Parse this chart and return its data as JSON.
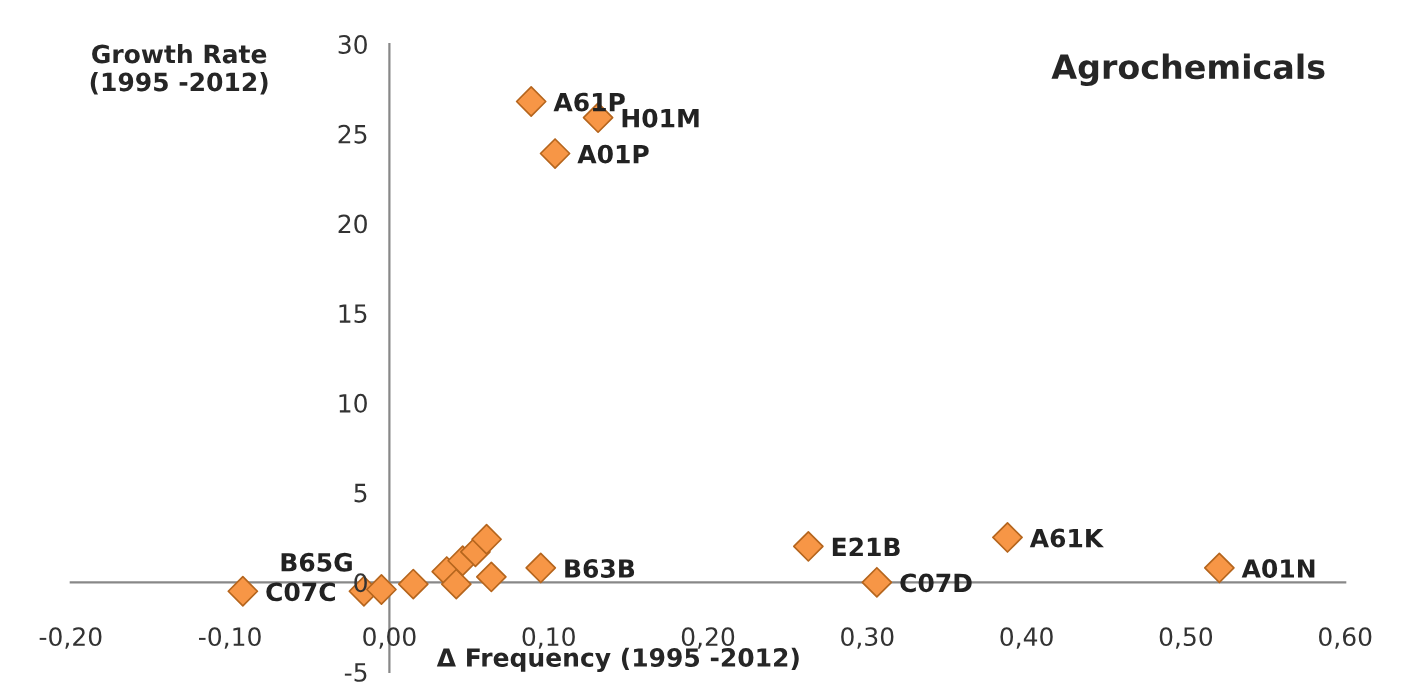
{
  "chart_data": {
    "type": "scatter",
    "title": "Agrochemicals",
    "xlabel": "Δ Frequency (1995 -2012)",
    "ylabel": "Growth Rate\n(1995 -2012)",
    "x": [
      0.089,
      0.131,
      0.104,
      0.263,
      0.306,
      0.388,
      0.521,
      -0.092,
      -0.016,
      -0.005,
      0.015,
      0.036,
      0.042,
      0.046,
      0.054,
      0.061,
      0.064,
      0.095
    ],
    "series": [
      {
        "color": "#f79646",
        "values": [
          26.8,
          25.9,
          23.9,
          2.0,
          0.0,
          2.5,
          0.8,
          -0.5,
          -0.5,
          -0.4,
          -0.1,
          0.6,
          -0.1,
          1.2,
          1.7,
          2.4,
          0.3,
          0.8
        ]
      }
    ],
    "marker": "diamond",
    "grid": false,
    "legend": false,
    "xlim": [
      -0.2,
      0.6
    ],
    "ylim": [
      -5,
      30
    ],
    "xticks": [
      {
        "value": -0.2,
        "label": "-0,20"
      },
      {
        "value": -0.1,
        "label": "-0,10"
      },
      {
        "value": 0.0,
        "label": "0,00"
      },
      {
        "value": 0.1,
        "label": "0,10"
      },
      {
        "value": 0.2,
        "label": "0,20"
      },
      {
        "value": 0.3,
        "label": "0,30"
      },
      {
        "value": 0.4,
        "label": "0,40"
      },
      {
        "value": 0.5,
        "label": "0,50"
      },
      {
        "value": 0.6,
        "label": "0,60"
      }
    ],
    "yticks": [
      -5,
      0,
      5,
      10,
      15,
      20,
      25,
      30
    ],
    "annotations": [
      {
        "text": "A61P",
        "x": 0.089,
        "y": 26.8
      },
      {
        "text": "H01M",
        "x": 0.131,
        "y": 25.9
      },
      {
        "text": "A01P",
        "x": 0.104,
        "y": 23.9
      },
      {
        "text": "E21B",
        "x": 0.263,
        "y": 2.0
      },
      {
        "text": "C07D",
        "x": 0.306,
        "y": 0.0
      },
      {
        "text": "A61K",
        "x": 0.388,
        "y": 2.5
      },
      {
        "text": "A01N",
        "x": 0.521,
        "y": 0.8
      },
      {
        "text": "C07C",
        "x": -0.092,
        "y": -0.5
      },
      {
        "text": "B65G",
        "x": -0.005,
        "y": -0.4
      },
      {
        "text": "B63B",
        "x": 0.095,
        "y": 0.8
      }
    ]
  }
}
